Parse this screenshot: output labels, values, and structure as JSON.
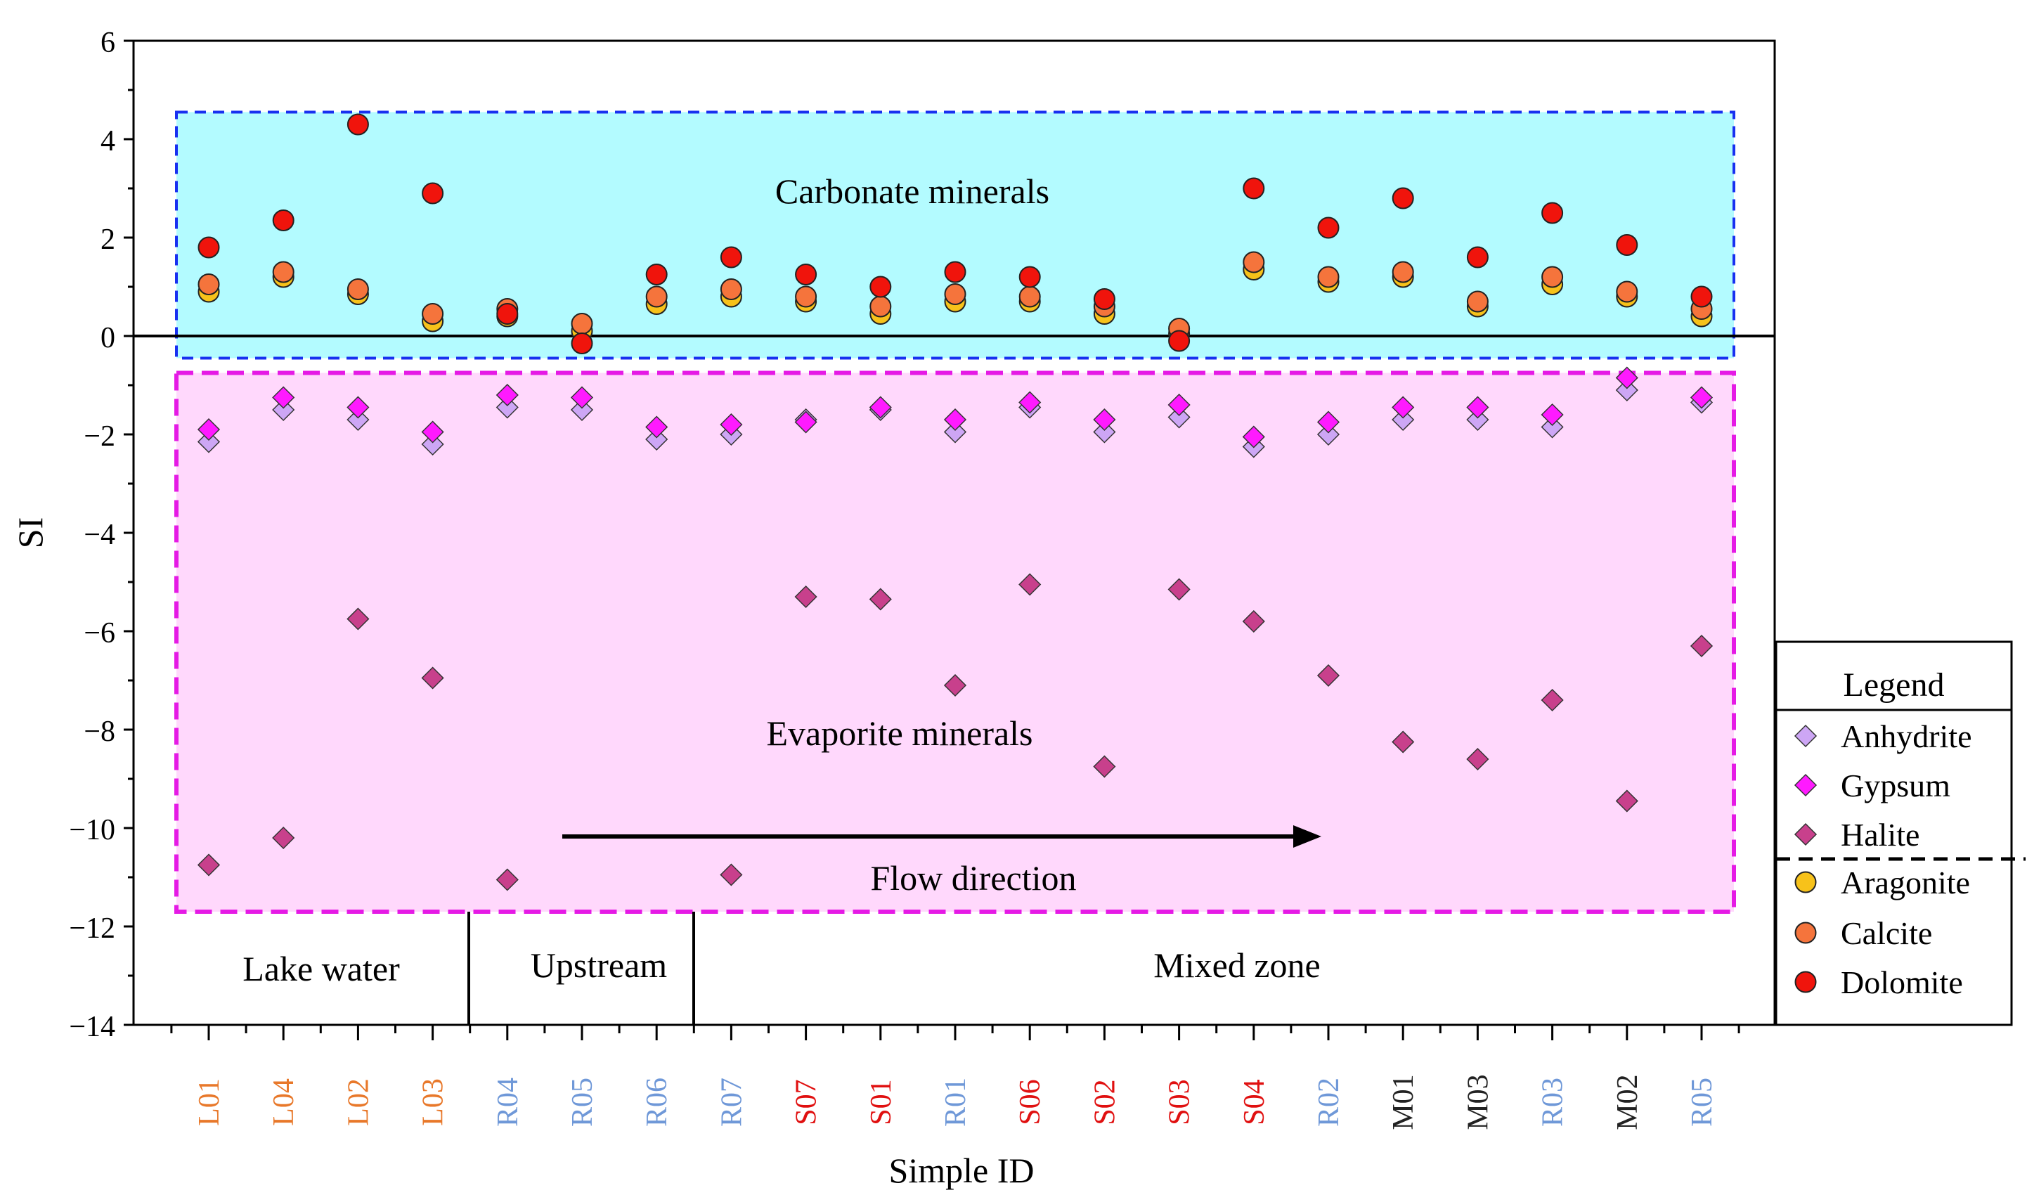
{
  "chart_data": {
    "type": "scatter",
    "title": "",
    "xlabel": "Simple ID",
    "ylabel": "SI",
    "ylim": [
      -14,
      6
    ],
    "yticks": [
      6,
      4,
      2,
      0,
      -2,
      -4,
      -6,
      -8,
      -10,
      -12,
      -14
    ],
    "ytick_labels": [
      "6",
      "4",
      "2",
      "0",
      "−2",
      "−4",
      "−6",
      "−8",
      "−10",
      "−12",
      "−14"
    ],
    "categories": [
      "L01",
      "L04",
      "L02",
      "L03",
      "R04",
      "R05",
      "R06",
      "R07",
      "S07",
      "S01",
      "R01",
      "S06",
      "S02",
      "S03",
      "S04",
      "R02",
      "M01",
      "M03",
      "R03",
      "M02",
      "R05"
    ],
    "category_groups": [
      "lake",
      "lake",
      "lake",
      "lake",
      "upstream",
      "upstream",
      "upstream",
      "upstream",
      "s",
      "s",
      "upstream",
      "s",
      "s",
      "s",
      "s",
      "upstream",
      "mixed",
      "mixed",
      "upstream",
      "mixed",
      "upstream"
    ],
    "category_colors": {
      "lake": "#e8782a",
      "upstream": "#6f98d8",
      "s": "#e01010",
      "mixed": "#222222"
    },
    "series": [
      {
        "name": "Anhydrite",
        "marker": "diamond",
        "color": "#cda6f5",
        "values": [
          -2.15,
          -1.5,
          -1.7,
          -2.2,
          -1.45,
          -1.5,
          -2.1,
          -2.0,
          -1.7,
          -1.5,
          -1.95,
          -1.45,
          -1.95,
          -1.65,
          -2.25,
          -2.0,
          -1.7,
          -1.7,
          -1.85,
          -1.1,
          -1.35
        ]
      },
      {
        "name": "Gypsum",
        "marker": "diamond",
        "color": "#ff1aff",
        "values": [
          -1.9,
          -1.25,
          -1.45,
          -1.95,
          -1.2,
          -1.25,
          -1.85,
          -1.8,
          -1.75,
          -1.45,
          -1.7,
          -1.35,
          -1.7,
          -1.4,
          -2.05,
          -1.75,
          -1.45,
          -1.45,
          -1.6,
          -0.85,
          -1.25
        ]
      },
      {
        "name": "Halite",
        "marker": "diamond",
        "color": "#c8408c",
        "values": [
          -10.75,
          -10.2,
          -5.75,
          -6.95,
          -11.05,
          null,
          null,
          -10.95,
          -5.3,
          -5.35,
          -7.1,
          -5.05,
          -8.75,
          -5.15,
          -5.8,
          -6.9,
          -8.25,
          -8.6,
          -7.4,
          -9.45,
          -6.3
        ]
      },
      {
        "name": "Aragonite",
        "marker": "circle",
        "color": "#f7c21a",
        "values": [
          0.9,
          1.2,
          0.85,
          0.3,
          0.4,
          0.1,
          0.65,
          0.8,
          0.7,
          0.45,
          0.7,
          0.7,
          0.45,
          0.05,
          1.35,
          1.1,
          1.2,
          0.6,
          1.05,
          0.8,
          0.4
        ]
      },
      {
        "name": "Calcite",
        "marker": "circle",
        "color": "#f5743c",
        "values": [
          1.05,
          1.3,
          0.95,
          0.45,
          0.55,
          0.25,
          0.8,
          0.95,
          0.8,
          0.6,
          0.85,
          0.8,
          0.6,
          0.15,
          1.5,
          1.2,
          1.3,
          0.7,
          1.2,
          0.9,
          0.55
        ]
      },
      {
        "name": "Dolomite",
        "marker": "circle",
        "color": "#f0140c",
        "values": [
          1.8,
          2.35,
          4.3,
          2.9,
          0.45,
          -0.15,
          1.25,
          1.6,
          1.25,
          1.0,
          1.3,
          1.2,
          0.75,
          -0.1,
          3.0,
          2.2,
          2.8,
          1.6,
          2.5,
          1.85,
          0.8
        ]
      }
    ],
    "regions": [
      {
        "label": "Carbonate minerals",
        "y_range": [
          -0.45,
          4.55
        ],
        "fill": "#b3fbff",
        "border": "#1830f0"
      },
      {
        "label": "Evaporite minerals",
        "y_range": [
          -11.7,
          -0.75
        ],
        "fill": "#ffd8fc",
        "border": "#e51ae5"
      }
    ],
    "zones": [
      "Lake water",
      "Upstream",
      "Mixed zone"
    ],
    "annotation": "Flow direction",
    "legend_title": "Legend",
    "legend_position": "right"
  }
}
